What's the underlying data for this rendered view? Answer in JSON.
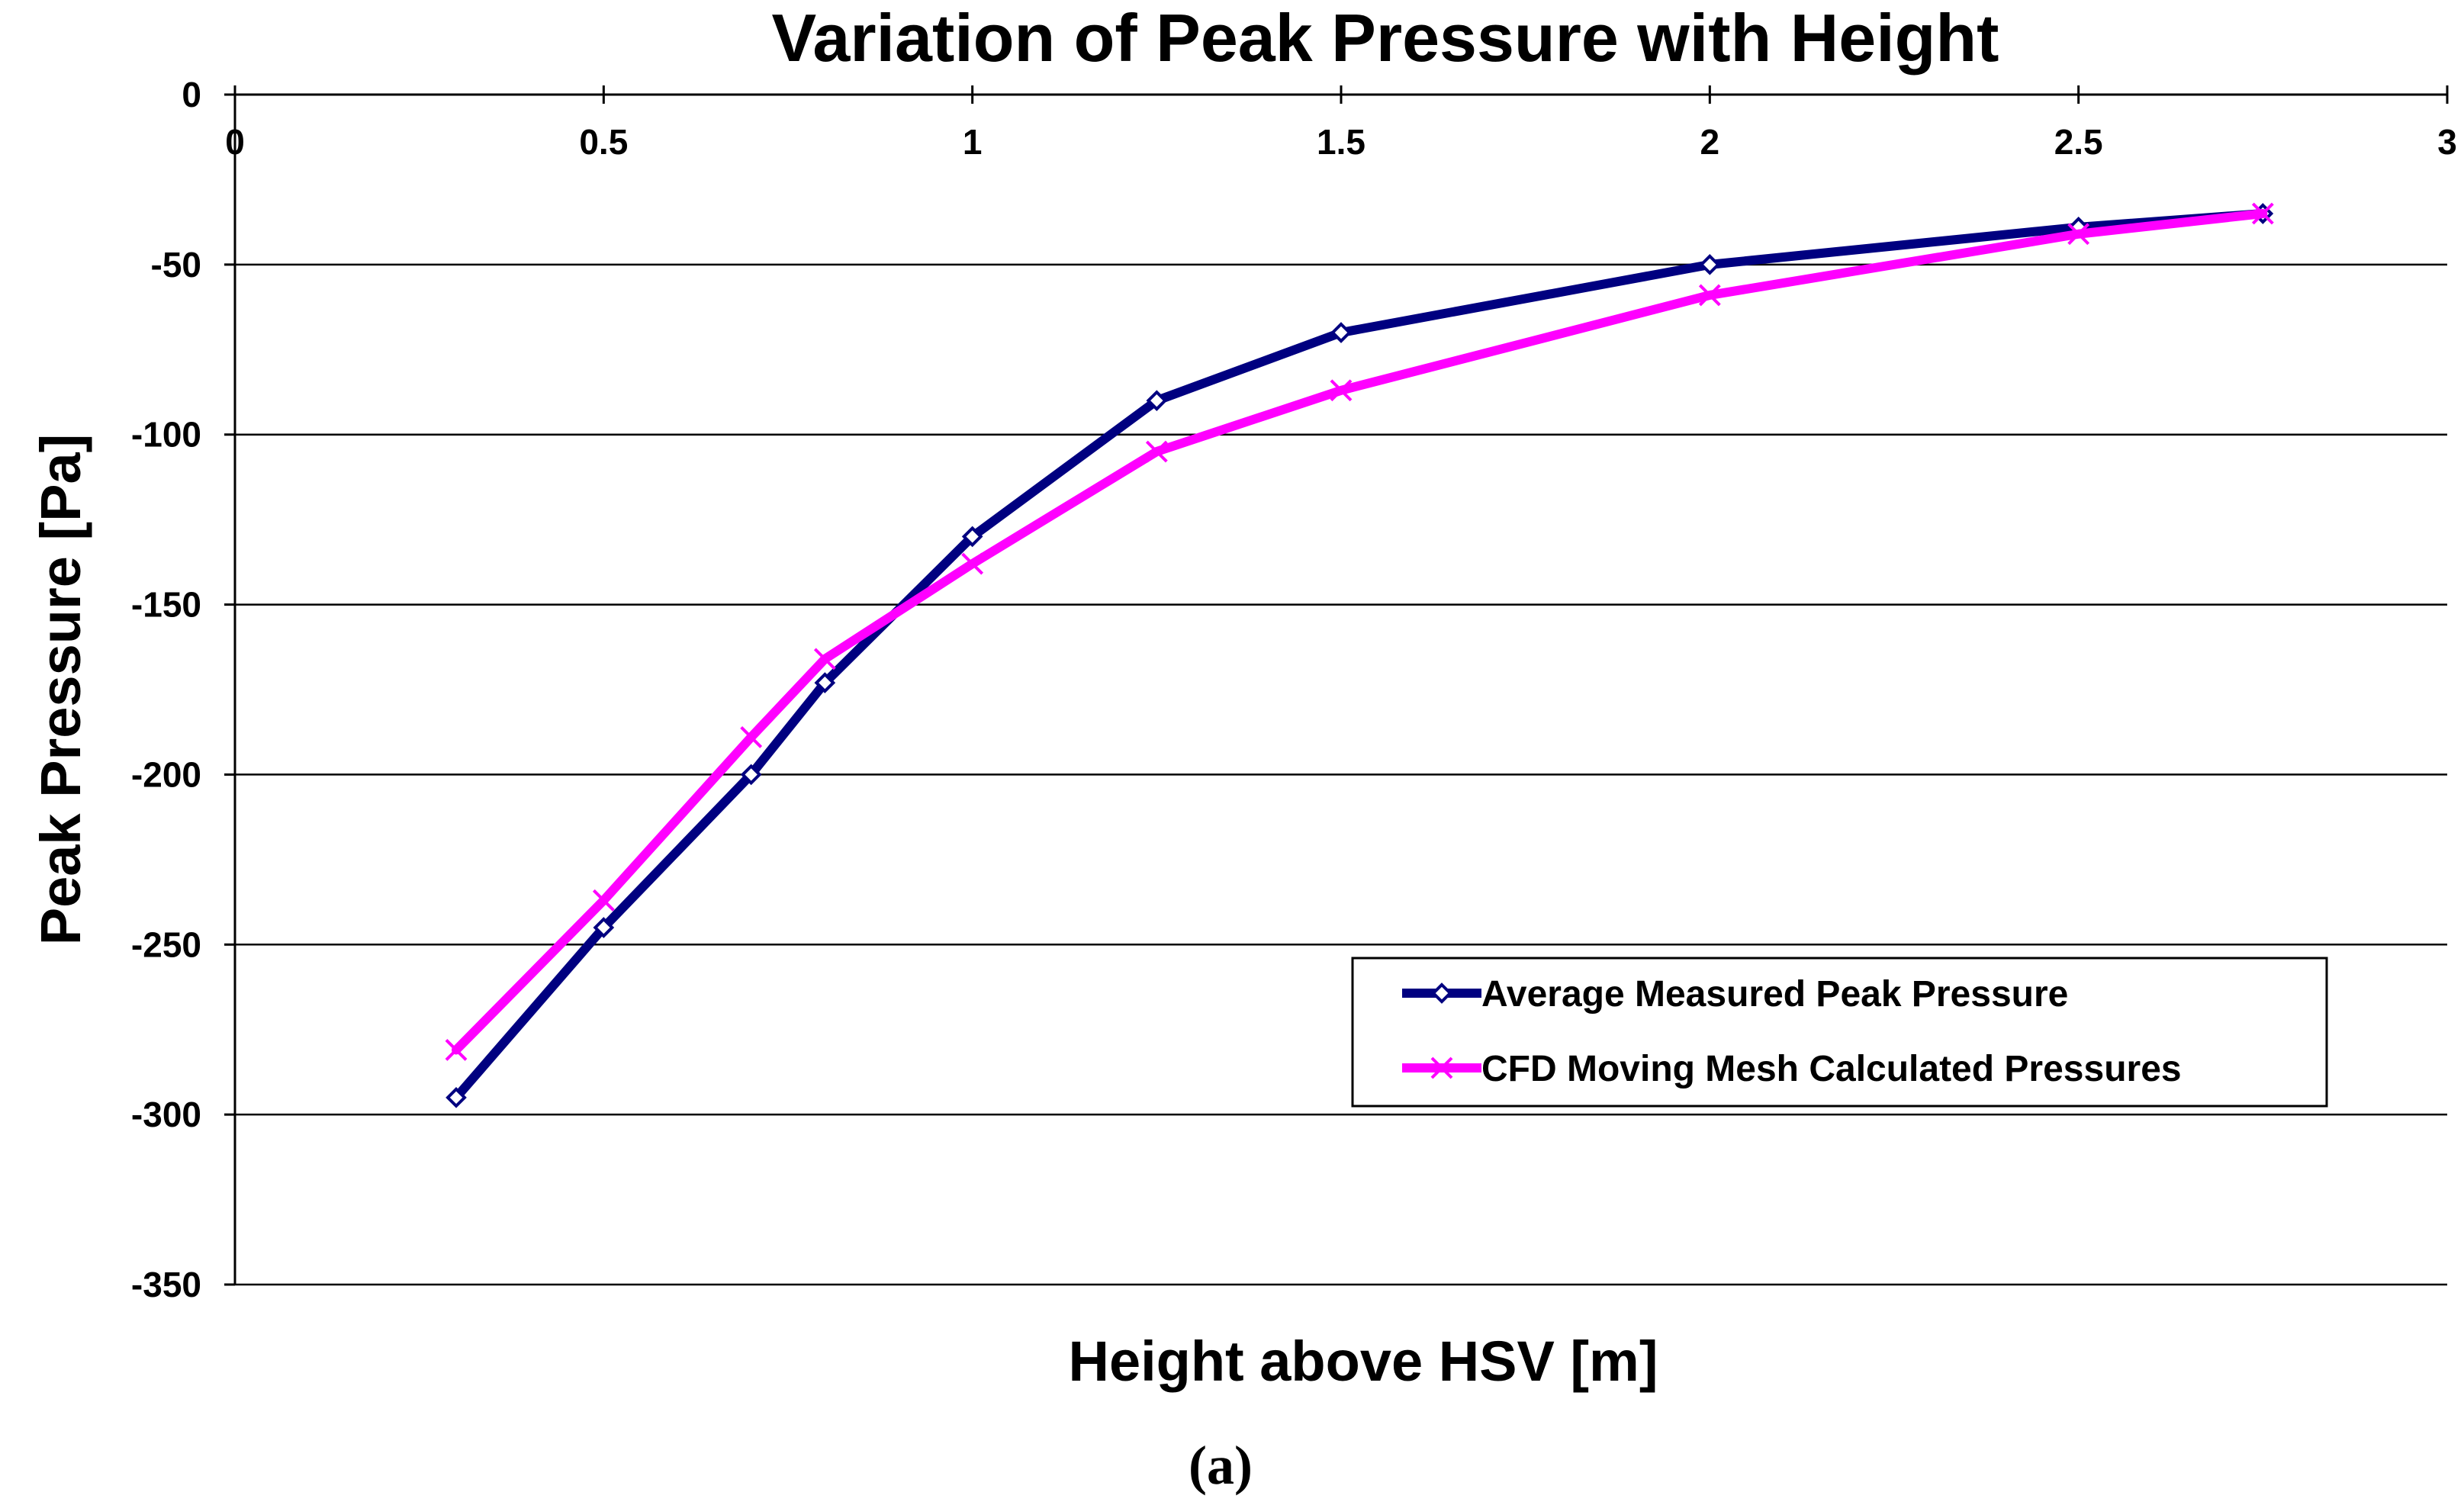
{
  "chart_data": {
    "type": "line",
    "title": "Variation of Peak Pressure with Height",
    "xlabel": "Height above HSV [m]",
    "ylabel": "Peak Pressure [Pa]",
    "xlim": [
      0,
      3
    ],
    "ylim": [
      -350,
      0
    ],
    "x_ticks": [
      "0",
      "0.5",
      "1",
      "1.5",
      "2",
      "2.5",
      "3"
    ],
    "y_ticks": [
      "0",
      "-50",
      "-100",
      "-150",
      "-200",
      "-250",
      "-300",
      "-350"
    ],
    "grid": "horizontal",
    "legend_position": "lower-right",
    "series": [
      {
        "name": "Average Measured Peak Pressure",
        "color": "#000080",
        "marker": "diamond",
        "x": [
          0.3,
          0.5,
          0.7,
          0.8,
          1.0,
          1.25,
          1.5,
          2.0,
          2.5,
          2.75
        ],
        "y": [
          -295,
          -245,
          -200,
          -173,
          -130,
          -90,
          -70,
          -50,
          -39,
          -35
        ]
      },
      {
        "name": "CFD Moving Mesh Calculated Pressures",
        "color": "#ff00ff",
        "marker": "x",
        "x": [
          0.3,
          0.5,
          0.7,
          0.8,
          1.0,
          1.25,
          1.5,
          2.0,
          2.5,
          2.75
        ],
        "y": [
          -281,
          -237,
          -189,
          -166,
          -138,
          -105,
          -87,
          -59,
          -41,
          -35
        ]
      }
    ]
  },
  "caption": "(a)"
}
